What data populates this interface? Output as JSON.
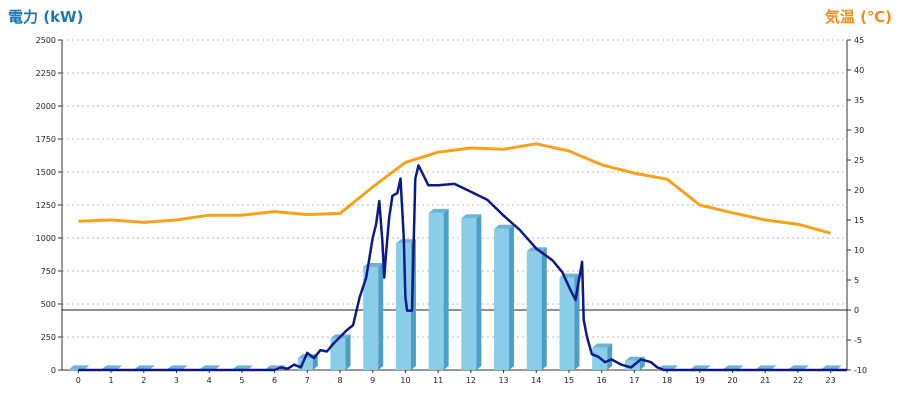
{
  "chart_data": {
    "type": "bar",
    "title": "",
    "xlabel": "",
    "ylabel_left": "電力 (kW)",
    "ylabel_right": "気温 (℃)",
    "grid": true,
    "legend": "none",
    "xlim": [
      -0.5,
      23.5
    ],
    "ylim_left": [
      0,
      2500
    ],
    "ylim_right": [
      -10,
      45
    ],
    "categories": [
      "0",
      "1",
      "2",
      "3",
      "4",
      "5",
      "6",
      "7",
      "8",
      "9",
      "10",
      "11",
      "12",
      "13",
      "14",
      "15",
      "16",
      "17",
      "18",
      "19",
      "20",
      "21",
      "22",
      "23"
    ],
    "left_ticks": [
      0,
      250,
      500,
      750,
      1000,
      1250,
      1500,
      1750,
      2000,
      2250,
      2500
    ],
    "right_ticks": [
      -10,
      -5,
      0,
      5,
      10,
      15,
      20,
      25,
      30,
      35,
      40,
      45
    ],
    "colors": {
      "bar_front": "#89cde9",
      "bar_side": "#4f9ec4",
      "bar_top": "#6db5d8",
      "power_line": "#0a1a8c",
      "temp_line": "#f5a21a",
      "grid": "#bbbbbb",
      "zero_line": "#222222",
      "left_title": "#1f77b4",
      "right_title": "#f28c1a"
    },
    "series": [
      {
        "kind": "bar",
        "axis": "left",
        "values": [
          5,
          5,
          5,
          5,
          5,
          5,
          5,
          90,
          240,
          780,
          960,
          1190,
          1150,
          1070,
          900,
          700,
          170,
          70,
          5,
          5,
          5,
          5,
          5,
          5
        ]
      },
      {
        "kind": "line",
        "axis": "left",
        "x": [
          0,
          6,
          6.2,
          6.4,
          6.6,
          6.8,
          7.0,
          7.2,
          7.4,
          7.6,
          7.8,
          8.0,
          8.2,
          8.4,
          8.6,
          8.8,
          9.0,
          9.1,
          9.2,
          9.3,
          9.35,
          9.4,
          9.5,
          9.6,
          9.75,
          9.85,
          9.95,
          10.0,
          10.05,
          10.1,
          10.2,
          10.3,
          10.4,
          10.5,
          10.7,
          11.0,
          11.5,
          12.0,
          12.5,
          13.0,
          13.5,
          14.0,
          14.5,
          14.8,
          15.0,
          15.2,
          15.4,
          15.45,
          15.55,
          15.7,
          15.9,
          16.1,
          16.3,
          16.6,
          16.9,
          17.2,
          17.5,
          17.7,
          17.9,
          23.5
        ],
        "values": [
          0,
          0,
          20,
          10,
          40,
          20,
          130,
          90,
          150,
          140,
          200,
          250,
          300,
          340,
          550,
          700,
          1000,
          1100,
          1280,
          960,
          700,
          860,
          1150,
          1320,
          1340,
          1450,
          1000,
          550,
          450,
          450,
          450,
          1450,
          1550,
          1500,
          1400,
          1400,
          1410,
          1350,
          1290,
          1170,
          1060,
          920,
          830,
          740,
          630,
          530,
          820,
          380,
          250,
          120,
          100,
          60,
          80,
          40,
          20,
          80,
          60,
          20,
          0,
          0
        ]
      },
      {
        "kind": "line",
        "axis": "right",
        "x": [
          0,
          1,
          2,
          3,
          4,
          5,
          6,
          7,
          8,
          9,
          10,
          11,
          12,
          13,
          14,
          15,
          16,
          17,
          18,
          19,
          20,
          21,
          22,
          23
        ],
        "values": [
          14.8,
          15.0,
          14.6,
          15.0,
          15.8,
          15.8,
          16.4,
          15.9,
          16.1,
          20.5,
          24.6,
          26.3,
          27.0,
          26.8,
          27.7,
          26.5,
          24.2,
          22.8,
          21.8,
          17.5,
          16.2,
          15.0,
          14.3,
          12.8
        ]
      }
    ]
  }
}
